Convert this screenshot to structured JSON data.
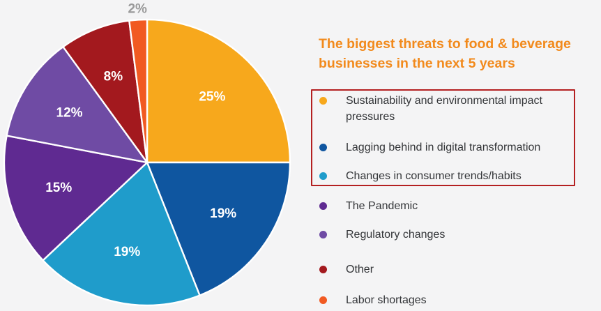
{
  "chart_data": {
    "type": "pie",
    "title": "The biggest threats to food & beverage businesses in the next 5 years",
    "slices": [
      {
        "label": "Sustainability and environmental impact pressures",
        "value": 25,
        "display": "25%",
        "color": "#f7a81c",
        "text_color": "#ffffff"
      },
      {
        "label": "Lagging behind in digital transformation",
        "value": 19,
        "display": "19%",
        "color": "#0f56a0",
        "text_color": "#ffffff"
      },
      {
        "label": "Changes in consumer trends/habits",
        "value": 19,
        "display": "19%",
        "color": "#1f9ccb",
        "text_color": "#ffffff"
      },
      {
        "label": "The Pandemic",
        "value": 15,
        "display": "15%",
        "color": "#5f2a91",
        "text_color": "#ffffff"
      },
      {
        "label": "Regulatory changes",
        "value": 12,
        "display": "12%",
        "color": "#6f4ba4",
        "text_color": "#ffffff"
      },
      {
        "label": "Other",
        "value": 8,
        "display": "8%",
        "color": "#a3191e",
        "text_color": "#ffffff"
      },
      {
        "label": "Labor shortages",
        "value": 2,
        "display": "2%",
        "color": "#f15a22",
        "text_color": "#9a9a9a"
      }
    ],
    "legend": {
      "placement": "right",
      "highlighted_items": [
        "Sustainability and environmental impact pressures",
        "Lagging behind in digital transformation",
        "Changes in consumer trends/habits"
      ],
      "highlight_color": "#b42021"
    },
    "start_angle": "top",
    "direction": "clockwise"
  }
}
